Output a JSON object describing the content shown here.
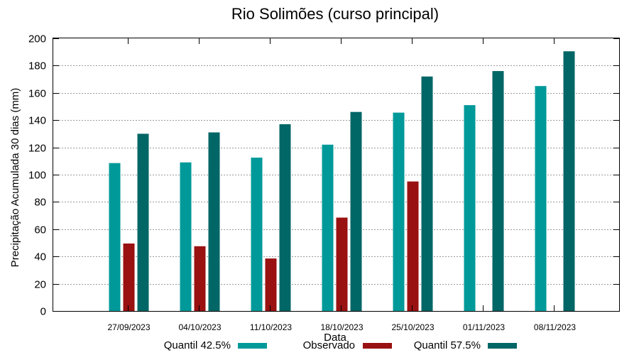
{
  "chart_data": {
    "type": "bar",
    "title": "Rio Solimões (curso principal)",
    "xlabel": "Data",
    "ylabel": "Precipitação Acumulada 30 dias (mm)",
    "ylim": [
      0,
      200
    ],
    "yticks": [
      0,
      20,
      40,
      60,
      80,
      100,
      120,
      140,
      160,
      180,
      200
    ],
    "grid": true,
    "legend_position": "bottom",
    "categories": [
      "27/09/2023",
      "04/10/2023",
      "11/10/2023",
      "18/10/2023",
      "25/10/2023",
      "01/11/2023",
      "08/11/2023"
    ],
    "series": [
      {
        "name": "Quantil 42.5%",
        "color": "#009999",
        "values": [
          108.5,
          109,
          112.5,
          122,
          145.5,
          151,
          165
        ]
      },
      {
        "name": "Observado",
        "color": "#991111",
        "values": [
          49.5,
          47.5,
          38.5,
          68.5,
          95,
          null,
          null
        ]
      },
      {
        "name": "Quantil 57.5%",
        "color": "#006666",
        "values": [
          130,
          131,
          137,
          146,
          172,
          176,
          190.5
        ]
      }
    ]
  }
}
